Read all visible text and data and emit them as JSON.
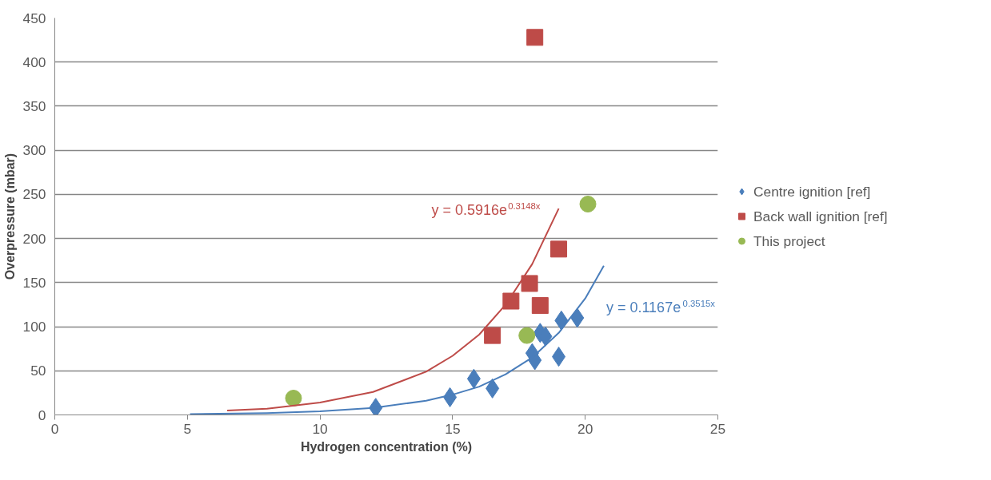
{
  "chart_data": {
    "type": "scatter",
    "xlabel": "Hydrogen concentration (%)",
    "ylabel": "Overpressure (mbar)",
    "xlim": [
      0,
      25
    ],
    "ylim": [
      0,
      450
    ],
    "xticks": [
      0,
      5,
      10,
      15,
      20,
      25
    ],
    "yticks": [
      0,
      50,
      100,
      150,
      200,
      250,
      300,
      350,
      400,
      450
    ],
    "grid": "y",
    "legend": "right",
    "series": [
      {
        "name": "Centre ignition [ref]",
        "color": "#4a7ebb",
        "marker": "diamond",
        "x": [
          12.1,
          14.9,
          15.8,
          16.5,
          18.0,
          18.1,
          18.3,
          18.5,
          19.0,
          19.1,
          19.7
        ],
        "values": [
          8,
          20,
          41,
          30,
          70,
          62,
          93,
          89,
          66,
          107,
          110
        ]
      },
      {
        "name": "Back wall ignition [ref]",
        "color": "#be4b48",
        "marker": "square",
        "x": [
          18.1,
          16.5,
          17.2,
          17.9,
          18.3,
          19.0
        ],
        "values": [
          428,
          90,
          129,
          149,
          124,
          188
        ]
      },
      {
        "name": "This project",
        "color": "#98b954",
        "marker": "circle",
        "x": [
          9.0,
          17.8,
          20.1
        ],
        "values": [
          19,
          90,
          239
        ]
      },
      {
        "type": "line",
        "color": "#be4b48",
        "x": [
          6.5,
          8,
          10,
          12,
          14,
          15,
          16,
          17,
          18,
          19
        ],
        "values": [
          5,
          7,
          14,
          26,
          49,
          67,
          91,
          125,
          171,
          234
        ]
      },
      {
        "type": "line",
        "color": "#4a7ebb",
        "x": [
          5.1,
          8,
          10,
          12,
          14,
          15,
          16,
          17,
          18,
          19,
          20,
          20.7
        ],
        "values": [
          1,
          2,
          4,
          8,
          16,
          23,
          32,
          46,
          65,
          93,
          132,
          169
        ]
      }
    ],
    "annotations": [
      "y = 0.5916e$^{0.3148x}$",
      "y = 0.1167e$^{0.3515x}$"
    ]
  }
}
